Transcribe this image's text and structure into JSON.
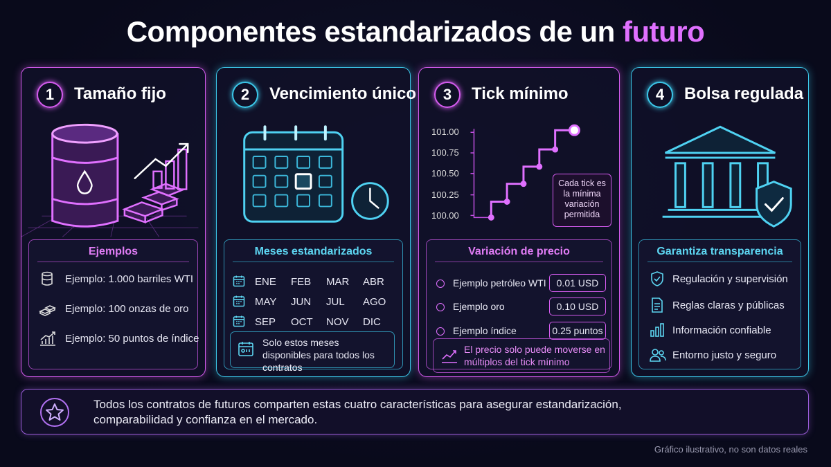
{
  "title": {
    "main": "Componentes estandarizados de un",
    "highlight": "futuro"
  },
  "cards": [
    {
      "number": "1",
      "title": "Tamaño fijo",
      "panel_title": "Ejemplos",
      "items": [
        "Ejemplo: 1.000 barriles WTI",
        "Ejemplo: 100 onzas de oro",
        "Ejemplo: 50 puntos de índice"
      ]
    },
    {
      "number": "2",
      "title": "Vencimiento único",
      "panel_title": "Meses estandarizados",
      "months": [
        [
          "ENE",
          "FEB",
          "MAR",
          "ABR"
        ],
        [
          "MAY",
          "JUN",
          "JUL",
          "AGO"
        ],
        [
          "SEP",
          "OCT",
          "NOV",
          "DIC"
        ]
      ],
      "note": "Solo estos meses disponibles para todos los contratos"
    },
    {
      "number": "3",
      "title": "Tick mínimo",
      "chart_ticks": [
        "101.00",
        "100.75",
        "100.50",
        "100.25",
        "100.00"
      ],
      "callout": "Cada tick es la mínima variación permitida",
      "panel_title": "Variación de precio",
      "items": [
        {
          "label": "Ejemplo petróleo WTI",
          "value": "0.01 USD"
        },
        {
          "label": "Ejemplo oro",
          "value": "0.10 USD"
        },
        {
          "label": "Ejemplo índice",
          "value": "0.25 puntos"
        }
      ],
      "note": "El precio solo puede moverse en múltiplos del tick mínimo"
    },
    {
      "number": "4",
      "title": "Bolsa regulada",
      "panel_title": "Garantiza transparencia",
      "items": [
        "Regulación y supervisión",
        "Reglas claras y públicas",
        "Información confiable",
        "Entorno justo y seguro"
      ]
    }
  ],
  "footer_note": "Todos los contratos de futuros comparten estas cuatro características para asegurar estandarización, comparabilidad y confianza en el mercado.",
  "disclaimer": "Gráfico ilustrativo, no son datos reales"
}
